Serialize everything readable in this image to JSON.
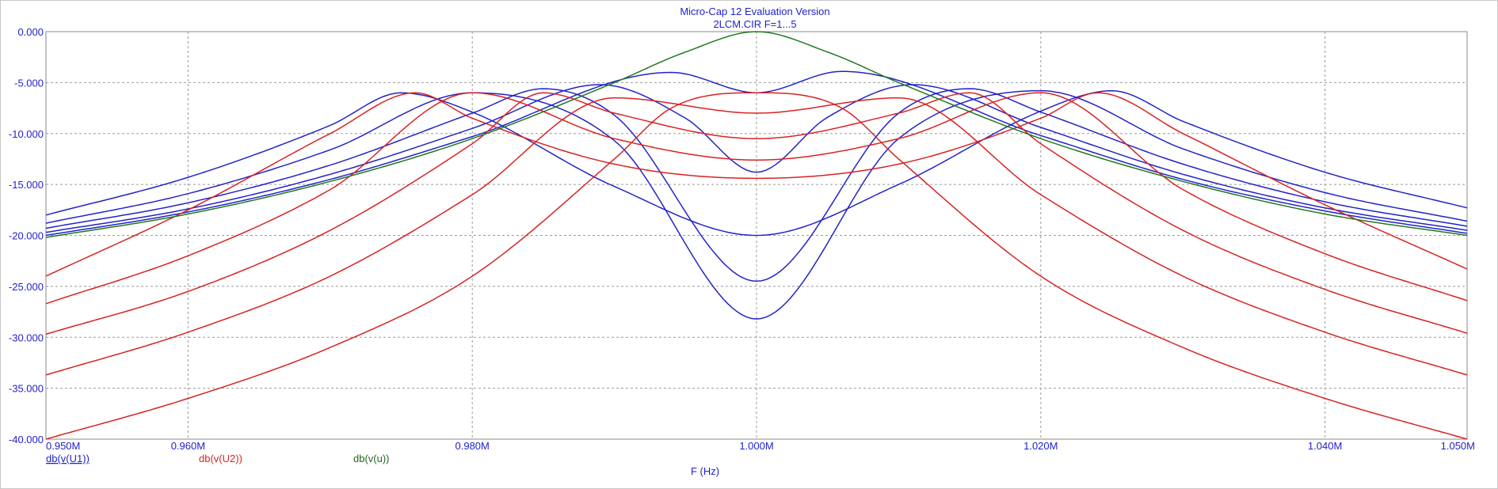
{
  "window": {
    "title": "Micro-Cap 12 Evaluation Version",
    "subtitle": "2LCM.CIR F=1...5"
  },
  "colors": {
    "u1": "#2323c8",
    "u2": "#d92222",
    "u": "#1f7a1f",
    "axis_text": "#2222cc",
    "grid": "#9a9a9a"
  },
  "chart_data": {
    "type": "line",
    "title": "Micro-Cap 12 Evaluation Version",
    "subtitle": "2LCM.CIR F=1...5",
    "xlabel": "F (Hz)",
    "ylabel": "",
    "xlim": [
      0.95,
      1.05
    ],
    "ylim": [
      -40,
      0
    ],
    "grid": true,
    "x_ticks": [
      0.95,
      0.96,
      0.98,
      1.0,
      1.02,
      1.04,
      1.05
    ],
    "x_tick_labels": [
      "0.950M",
      "0.960M",
      "0.980M",
      "1.000M",
      "1.020M",
      "1.040M",
      "1.050M"
    ],
    "y_ticks": [
      0,
      -5,
      -10,
      -15,
      -20,
      -25,
      -30,
      -35,
      -40
    ],
    "y_tick_labels": [
      "0.000",
      "-5.000",
      "-10.000",
      "-15.000",
      "-20.000",
      "-25.000",
      "-30.000",
      "-35.000",
      "-40.000"
    ],
    "legend": [
      "db(v(U1))",
      "db(v(U2))",
      "db(v(u))"
    ],
    "series": [
      {
        "name": "db(v(U1))",
        "color": "#2323c8",
        "x": [
          0.95,
          0.96,
          0.97,
          0.975,
          0.98,
          0.99,
          1.0,
          1.01,
          1.02,
          1.025,
          1.03,
          1.04,
          1.05
        ],
        "y": [
          -18.0,
          -14.3,
          -9.2,
          -6.0,
          -7.9,
          -15.2,
          -20.0,
          -15.0,
          -7.8,
          -5.8,
          -8.8,
          -13.8,
          -17.3
        ]
      },
      {
        "name": "db(v(U1))",
        "color": "#2323c8",
        "x": [
          0.95,
          0.96,
          0.97,
          0.98,
          0.99,
          1.0,
          1.01,
          1.02,
          1.03,
          1.04,
          1.05
        ],
        "y": [
          -18.8,
          -15.9,
          -11.6,
          -6.0,
          -10.7,
          -28.2,
          -10.5,
          -5.8,
          -11.5,
          -15.8,
          -18.6
        ]
      },
      {
        "name": "db(v(U1))",
        "color": "#2323c8",
        "x": [
          0.95,
          0.96,
          0.97,
          0.98,
          0.985,
          0.99,
          1.0,
          1.01,
          1.015,
          1.02,
          1.03,
          1.04,
          1.05
        ],
        "y": [
          -19.3,
          -16.8,
          -13.1,
          -8.0,
          -5.6,
          -8.2,
          -24.5,
          -8.0,
          -5.6,
          -7.9,
          -13.0,
          -16.7,
          -19.1
        ]
      },
      {
        "name": "db(v(U1))",
        "color": "#2323c8",
        "x": [
          0.95,
          0.96,
          0.97,
          0.98,
          0.989,
          0.995,
          1.0,
          1.005,
          1.011,
          1.02,
          1.03,
          1.04,
          1.05
        ],
        "y": [
          -19.7,
          -17.4,
          -14.0,
          -9.5,
          -5.2,
          -8.5,
          -13.8,
          -8.4,
          -5.2,
          -9.4,
          -14.0,
          -17.3,
          -19.5
        ]
      },
      {
        "name": "db(v(U1))",
        "color": "#2323c8",
        "x": [
          0.95,
          0.96,
          0.97,
          0.98,
          0.994,
          1.0,
          1.006,
          1.02,
          1.03,
          1.04,
          1.05
        ],
        "y": [
          -20.0,
          -17.7,
          -14.5,
          -10.3,
          -4.0,
          -6.0,
          -3.9,
          -10.2,
          -14.5,
          -17.6,
          -19.8
        ]
      },
      {
        "name": "db(v(U2))",
        "color": "#d92222",
        "x": [
          0.95,
          0.96,
          0.97,
          0.976,
          0.98,
          0.99,
          1.0,
          1.01,
          1.02,
          1.024,
          1.03,
          1.04,
          1.05
        ],
        "y": [
          -24.0,
          -17.5,
          -10.0,
          -6.0,
          -8.5,
          -13.0,
          -14.4,
          -13.0,
          -8.5,
          -6.0,
          -10.0,
          -17.0,
          -23.3
        ]
      },
      {
        "name": "db(v(U2))",
        "color": "#d92222",
        "x": [
          0.95,
          0.96,
          0.97,
          0.98,
          0.99,
          1.0,
          1.01,
          1.02,
          1.03,
          1.04,
          1.05
        ],
        "y": [
          -26.7,
          -22.0,
          -15.5,
          -6.0,
          -10.5,
          -12.6,
          -10.5,
          -6.0,
          -15.5,
          -21.8,
          -26.4
        ]
      },
      {
        "name": "db(v(U2))",
        "color": "#d92222",
        "x": [
          0.95,
          0.96,
          0.97,
          0.98,
          0.985,
          0.99,
          1.0,
          1.01,
          1.015,
          1.02,
          1.03,
          1.04,
          1.05
        ],
        "y": [
          -29.7,
          -25.5,
          -19.5,
          -11.0,
          -6.0,
          -8.0,
          -10.5,
          -8.0,
          -6.0,
          -11.0,
          -19.5,
          -25.3,
          -29.6
        ]
      },
      {
        "name": "db(v(U2))",
        "color": "#d92222",
        "x": [
          0.95,
          0.96,
          0.97,
          0.98,
          0.99,
          1.0,
          1.01,
          1.02,
          1.03,
          1.04,
          1.05
        ],
        "y": [
          -33.7,
          -29.5,
          -24.0,
          -16.0,
          -6.5,
          -8.0,
          -6.5,
          -16.0,
          -24.0,
          -29.5,
          -33.7
        ]
      },
      {
        "name": "db(v(U2))",
        "color": "#d92222",
        "x": [
          0.95,
          0.96,
          0.97,
          0.98,
          0.99,
          0.994,
          1.0,
          1.006,
          1.01,
          1.02,
          1.03,
          1.04,
          1.05
        ],
        "y": [
          -40.0,
          -36.0,
          -31.0,
          -24.0,
          -12.5,
          -7.5,
          -6.0,
          -7.5,
          -12.5,
          -24.0,
          -31.0,
          -36.0,
          -40.0
        ]
      },
      {
        "name": "db(v(u))",
        "color": "#1f7a1f",
        "x": [
          0.95,
          0.96,
          0.97,
          0.98,
          0.99,
          0.995,
          1.0,
          1.005,
          1.01,
          1.02,
          1.03,
          1.04,
          1.05
        ],
        "y": [
          -20.2,
          -17.9,
          -14.7,
          -10.5,
          -5.0,
          -2.0,
          0.0,
          -2.0,
          -5.0,
          -10.5,
          -14.7,
          -17.9,
          -20.0
        ]
      }
    ]
  }
}
